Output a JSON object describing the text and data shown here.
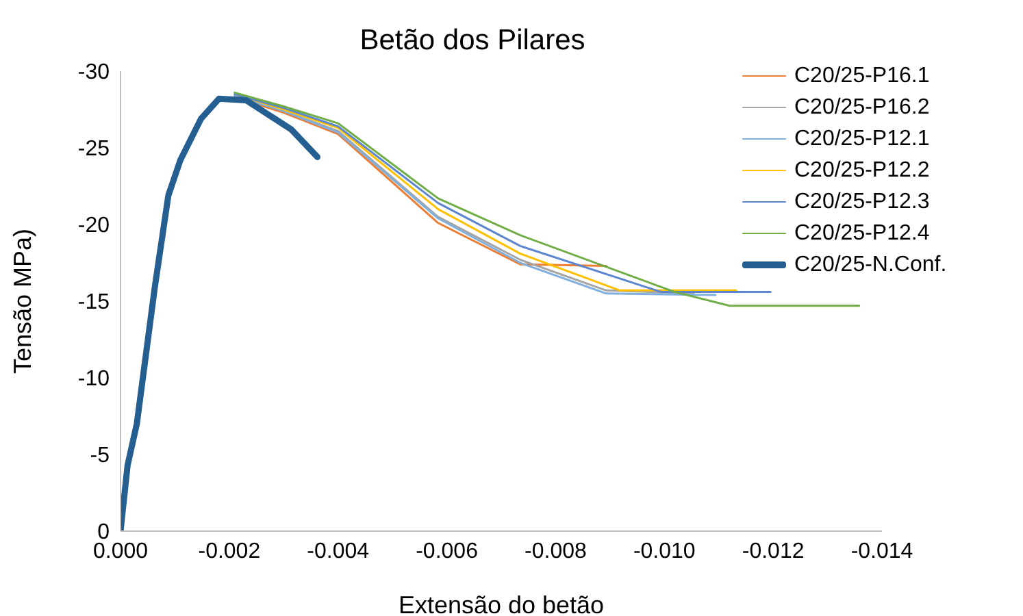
{
  "chart_data": {
    "type": "line",
    "title": "Betão dos Pilares",
    "xlabel": "Extensão do betão",
    "ylabel": "Tensão MPa)",
    "xlim": [
      0,
      -0.014
    ],
    "ylim": [
      0,
      -30
    ],
    "xticks": [
      {
        "value": 0,
        "label": "0.000"
      },
      -0.002,
      -0.004,
      -0.006,
      -0.008,
      {
        "value": -0.01,
        "label": "-0.010"
      },
      -0.012,
      -0.014
    ],
    "yticks": [
      0,
      -5,
      -10,
      -15,
      -20,
      -25,
      -30
    ],
    "grid": false,
    "legend": "top right",
    "marker": "none",
    "line_style": "solid",
    "series": [
      {
        "name": "C20/25-P16.1",
        "color": "#ed7d31",
        "x": [
          -0.0021,
          -0.003,
          -0.004,
          -0.00584,
          -0.00735,
          -0.00893
        ],
        "values": [
          -28.3,
          -27.3,
          -25.9,
          -20.1,
          -17.4,
          -17.3
        ]
      },
      {
        "name": "C20/25-P16.2",
        "color": "#a5a5a5",
        "x": [
          -0.0021,
          -0.003,
          -0.004,
          -0.00584,
          -0.00735,
          -0.00893,
          -0.01054
        ],
        "values": [
          -28.4,
          -27.4,
          -26.1,
          -20.5,
          -17.7,
          -15.7,
          -15.5
        ]
      },
      {
        "name": "C20/25-P12.1",
        "color": "#7fb0dd",
        "x": [
          -0.0021,
          -0.003,
          -0.004,
          -0.00584,
          -0.00735,
          -0.00893,
          -0.01094
        ],
        "values": [
          -28.4,
          -27.4,
          -26.0,
          -20.4,
          -17.5,
          -15.5,
          -15.4
        ]
      },
      {
        "name": "C20/25-P12.2",
        "color": "#ffc000",
        "x": [
          -0.0021,
          -0.003,
          -0.004,
          -0.00584,
          -0.00735,
          -0.00918,
          -0.01132
        ],
        "values": [
          -28.5,
          -27.5,
          -26.3,
          -21.0,
          -18.1,
          -15.7,
          -15.7
        ]
      },
      {
        "name": "C20/25-P12.3",
        "color": "#5b86cf",
        "x": [
          -0.0021,
          -0.003,
          -0.004,
          -0.00584,
          -0.00735,
          -0.00994,
          -0.01195
        ],
        "values": [
          -28.5,
          -27.6,
          -26.4,
          -21.4,
          -18.6,
          -15.6,
          -15.6
        ]
      },
      {
        "name": "C20/25-P12.4",
        "color": "#70ad47",
        "x": [
          -0.0021,
          -0.003,
          -0.004,
          -0.00584,
          -0.00735,
          -0.01019,
          -0.0112,
          -0.01358
        ],
        "values": [
          -28.6,
          -27.7,
          -26.6,
          -21.7,
          -19.3,
          -15.6,
          -14.7,
          -14.7
        ]
      },
      {
        "name": "C20/25-N.Conf.",
        "color": "#255e91",
        "x": [
          0,
          -0.00013,
          -0.0003,
          -0.00063,
          -0.00088,
          -0.0011,
          -0.00148,
          -0.00181,
          -0.00231,
          -0.00314,
          -0.00362
        ],
        "values": [
          0,
          -4.3,
          -7.0,
          -15.9,
          -21.9,
          -24.2,
          -26.9,
          -28.2,
          -28.1,
          -26.2,
          -24.4
        ]
      }
    ]
  }
}
